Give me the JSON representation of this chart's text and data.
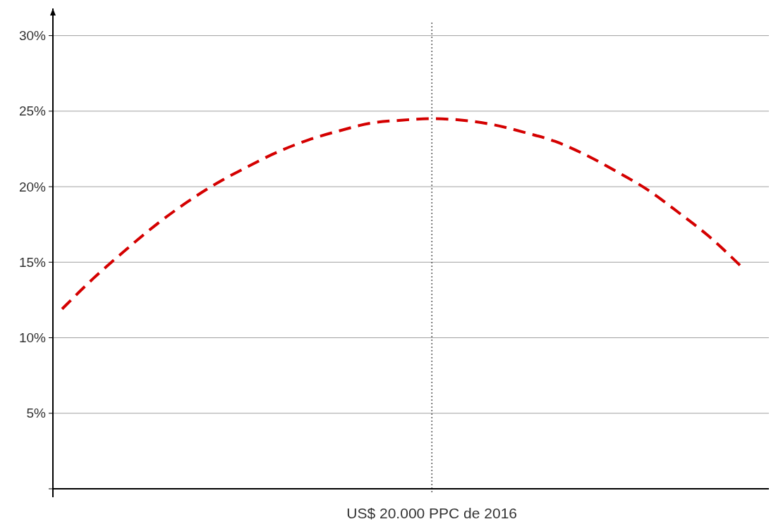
{
  "chart_data": {
    "type": "line",
    "categories": [
      null,
      null,
      null,
      null,
      null,
      null,
      null,
      null,
      null,
      null,
      null,
      null,
      "US$ 20.000 PPC de 2016",
      null,
      null,
      null,
      null,
      null,
      null,
      null,
      null,
      null,
      null
    ],
    "series": [
      {
        "color": "#d40000",
        "values": [
          11.9,
          13.9,
          15.7,
          17.4,
          18.9,
          20.2,
          21.3,
          22.3,
          23.1,
          23.7,
          24.2,
          24.4,
          24.5,
          24.4,
          24.1,
          23.6,
          23.0,
          22.1,
          21.0,
          19.8,
          18.3,
          16.7,
          14.8
        ]
      }
    ],
    "ylim": [
      0,
      31.8
    ],
    "yticks": [
      {
        "value": 0,
        "label": null
      },
      {
        "value": 5,
        "label": "5%"
      },
      {
        "value": 10,
        "label": "10%"
      },
      {
        "value": 15,
        "label": "15%"
      },
      {
        "value": 20,
        "label": "20%"
      },
      {
        "value": 25,
        "label": "25%"
      },
      {
        "value": 30,
        "label": "30%"
      }
    ],
    "grid": "y",
    "line_style": "dashed",
    "marker": "none",
    "ref_lines": [
      {
        "axis": "x",
        "value": "US$ 20.000 PPC de 2016",
        "color": "#000000",
        "line_style": "dotted"
      }
    ]
  }
}
